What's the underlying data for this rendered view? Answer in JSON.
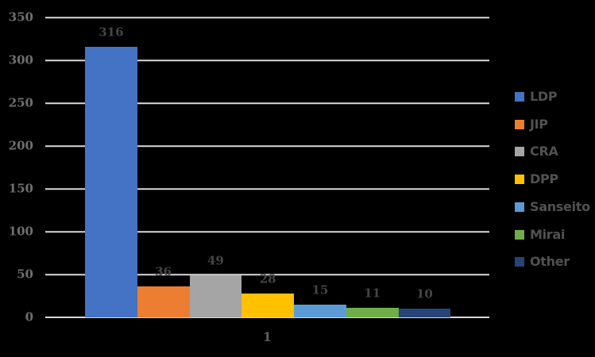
{
  "chart_data": {
    "type": "bar",
    "title": "",
    "xlabel": "",
    "ylabel": "",
    "categories": [
      "1"
    ],
    "series": [
      {
        "name": "LDP",
        "values": [
          316
        ],
        "color": "#4472C4"
      },
      {
        "name": "JIP",
        "values": [
          36
        ],
        "color": "#ED7D31"
      },
      {
        "name": "CRA",
        "values": [
          49
        ],
        "color": "#A5A5A5"
      },
      {
        "name": "DPP",
        "values": [
          28
        ],
        "color": "#FFC000"
      },
      {
        "name": "Sanseito",
        "values": [
          15
        ],
        "color": "#5B9BD5"
      },
      {
        "name": "Mirai",
        "values": [
          11
        ],
        "color": "#70AD47"
      },
      {
        "name": "Other",
        "values": [
          10
        ],
        "color": "#264478"
      }
    ],
    "data_labels": [
      "316",
      "36",
      "49",
      "28",
      "15",
      "11",
      "10"
    ],
    "ylim": [
      0,
      350
    ],
    "yticks": [
      0,
      50,
      100,
      150,
      200,
      250,
      300,
      350
    ],
    "grid": true,
    "legend_position": "right",
    "legend_entries": [
      "LDP",
      "JIP",
      "CRA",
      "DPP",
      "Sanseito",
      "Mirai",
      "Other"
    ]
  },
  "colors": {
    "background": "#000000",
    "gridline": "#D9D9D9",
    "axis_line": "#D9D9D9",
    "tick_label": "#6F6F6F",
    "data_label": "#454545",
    "category_label": "#5E5E5E",
    "legend_label": "#515151"
  }
}
